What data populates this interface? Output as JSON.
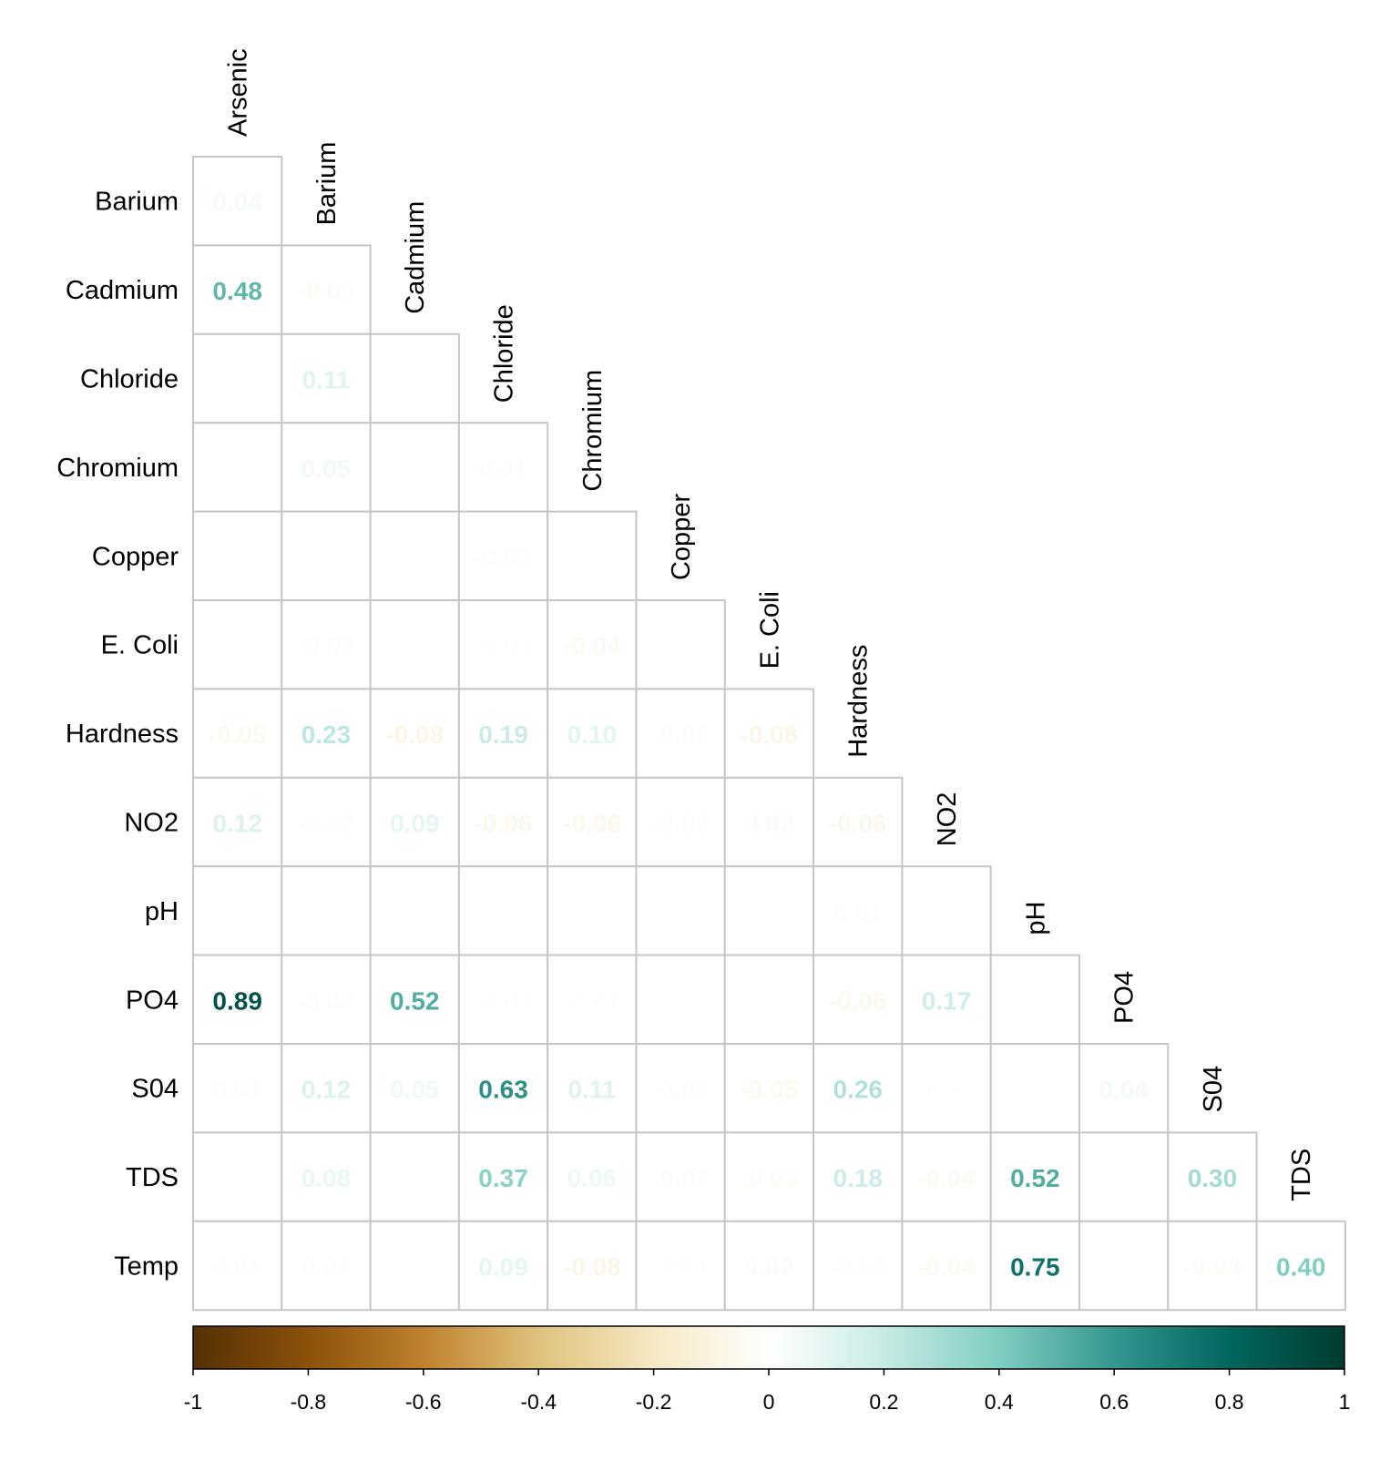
{
  "chart_data": {
    "type": "heatmap",
    "subtype": "lower-triangle correlation matrix",
    "row_labels": [
      "Barium",
      "Cadmium",
      "Chloride",
      "Chromium",
      "Copper",
      "E. Coli",
      "Hardness",
      "NO2",
      "pH",
      "PO4",
      "S04",
      "TDS",
      "Temp"
    ],
    "col_labels": [
      "Arsenic",
      "Barium",
      "Cadmium",
      "Chloride",
      "Chromium",
      "Copper",
      "E. Coli",
      "Hardness",
      "NO2",
      "pH",
      "PO4",
      "S04",
      "TDS"
    ],
    "values": [
      [
        0.04
      ],
      [
        0.48,
        -0.03
      ],
      [
        0.0,
        0.11,
        0.0
      ],
      [
        0.0,
        0.05,
        0.0,
        0.01
      ],
      [
        0.0,
        0.0,
        0.0,
        -0.02,
        0.0
      ],
      [
        0.0,
        -0.02,
        0.0,
        -0.01,
        -0.04,
        0.0
      ],
      [
        -0.05,
        0.23,
        -0.08,
        0.19,
        0.1,
        -0.02,
        -0.08
      ],
      [
        0.12,
        -0.02,
        0.09,
        -0.06,
        -0.06,
        -0.02,
        0.02,
        -0.06
      ],
      [
        0.0,
        0.0,
        0.0,
        0.0,
        0.0,
        0.0,
        0.0,
        0.01,
        0.0
      ],
      [
        0.89,
        -0.02,
        0.52,
        -0.01,
        -0.01,
        0.0,
        0.0,
        -0.06,
        0.17,
        0.0
      ],
      [
        0.01,
        0.12,
        0.05,
        0.63,
        0.11,
        -0.02,
        -0.05,
        0.26,
        -0.01,
        0.0,
        0.04
      ],
      [
        0.0,
        0.08,
        0.0,
        0.37,
        0.06,
        -0.02,
        -0.03,
        0.18,
        -0.04,
        0.52,
        0.0,
        0.3
      ],
      [
        0.01,
        0.01,
        0.0,
        0.09,
        -0.08,
        -0.01,
        0.02,
        -0.02,
        -0.04,
        0.75,
        0.0,
        -0.03,
        0.4
      ]
    ],
    "value_range": [
      -1,
      1
    ],
    "colorbar": {
      "position": "bottom",
      "ticks": [
        "-1",
        "-0.8",
        "-0.6",
        "-0.4",
        "-0.2",
        "0",
        "0.2",
        "0.4",
        "0.6",
        "0.8",
        "1"
      ],
      "colors": [
        "#543005",
        "#8c510a",
        "#bf812d",
        "#dfc27d",
        "#f6e8c3",
        "#ffffff",
        "#c7eae5",
        "#80cdc1",
        "#35978f",
        "#01665e",
        "#003c30"
      ]
    }
  }
}
